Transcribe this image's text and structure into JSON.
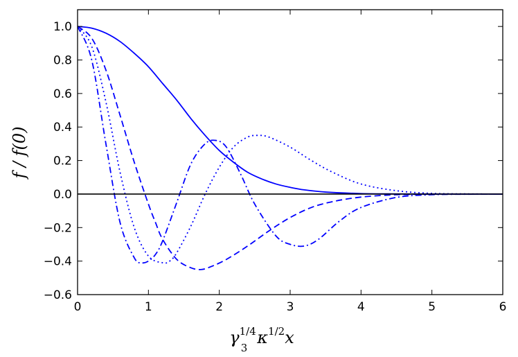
{
  "chart_data": {
    "type": "line",
    "title": "",
    "xlabel": {
      "base": "γ",
      "sub": "3",
      "sup1": "1/4",
      "mid": "κ",
      "sup2": "1/2",
      "tail": "x"
    },
    "ylabel": "f / f(0)",
    "xlim": [
      0,
      6
    ],
    "ylim": [
      -0.6,
      1.1
    ],
    "x_ticks": [
      0,
      1,
      2,
      3,
      4,
      5,
      6
    ],
    "x_tick_labels": [
      "0",
      "1",
      "2",
      "3",
      "4",
      "5",
      "6"
    ],
    "y_ticks": [
      -0.6,
      -0.4,
      -0.2,
      0.0,
      0.2,
      0.4,
      0.6,
      0.8,
      1.0
    ],
    "y_tick_labels": [
      "−0.6",
      "−0.4",
      "−0.2",
      "0.0",
      "0.2",
      "0.4",
      "0.6",
      "0.8",
      "1.0"
    ],
    "grid": false,
    "legend": "none",
    "reference_line": {
      "y": 0,
      "color": "#000000"
    },
    "series": [
      {
        "style": "solid",
        "color": "#0000ff",
        "x": [
          0,
          0.2,
          0.4,
          0.6,
          0.8,
          1.0,
          1.2,
          1.4,
          1.6,
          1.8,
          2.0,
          2.2,
          2.4,
          2.6,
          2.8,
          3.0,
          3.2,
          3.5,
          4.0,
          4.5,
          5.0,
          5.5,
          6.0
        ],
        "y": [
          1.0,
          0.99,
          0.96,
          0.91,
          0.84,
          0.76,
          0.66,
          0.56,
          0.45,
          0.35,
          0.26,
          0.19,
          0.13,
          0.09,
          0.06,
          0.04,
          0.025,
          0.012,
          0.003,
          0.0007,
          0.0001,
          0.0,
          0.0
        ]
      },
      {
        "style": "dashed",
        "color": "#0000ff",
        "x": [
          0,
          0.2,
          0.4,
          0.6,
          0.8,
          1.0,
          1.1,
          1.2,
          1.4,
          1.6,
          1.75,
          1.9,
          2.1,
          2.4,
          2.7,
          3.0,
          3.3,
          3.6,
          4.0,
          4.5,
          5.0,
          5.5,
          6.0
        ],
        "y": [
          1.0,
          0.93,
          0.74,
          0.47,
          0.19,
          -0.06,
          -0.17,
          -0.27,
          -0.39,
          -0.44,
          -0.45,
          -0.43,
          -0.39,
          -0.31,
          -0.22,
          -0.14,
          -0.08,
          -0.045,
          -0.018,
          -0.004,
          -0.001,
          0.0,
          0.0
        ]
      },
      {
        "style": "dotted",
        "color": "#0000ff",
        "x": [
          0,
          0.2,
          0.4,
          0.6,
          0.8,
          1.0,
          1.2,
          1.3,
          1.4,
          1.6,
          1.8,
          2.0,
          2.2,
          2.4,
          2.55,
          2.7,
          3.0,
          3.3,
          3.6,
          4.0,
          4.5,
          5.0,
          5.5,
          6.0
        ],
        "y": [
          1.0,
          0.88,
          0.55,
          0.13,
          -0.2,
          -0.37,
          -0.41,
          -0.4,
          -0.35,
          -0.19,
          0.0,
          0.16,
          0.28,
          0.34,
          0.35,
          0.34,
          0.28,
          0.2,
          0.13,
          0.06,
          0.02,
          0.004,
          0.001,
          0.0
        ]
      },
      {
        "style": "dashdot",
        "color": "#0000ff",
        "x": [
          0,
          0.2,
          0.4,
          0.6,
          0.8,
          0.9,
          1.0,
          1.1,
          1.2,
          1.4,
          1.6,
          1.8,
          1.95,
          2.1,
          2.3,
          2.5,
          2.8,
          3.0,
          3.2,
          3.4,
          3.7,
          4.0,
          4.5,
          5.0,
          5.5,
          6.0
        ],
        "y": [
          1.0,
          0.8,
          0.3,
          -0.17,
          -0.38,
          -0.41,
          -0.4,
          -0.36,
          -0.28,
          -0.05,
          0.18,
          0.3,
          0.32,
          0.28,
          0.12,
          -0.06,
          -0.25,
          -0.3,
          -0.31,
          -0.27,
          -0.16,
          -0.08,
          -0.02,
          -0.004,
          -0.001,
          0.0
        ]
      }
    ]
  }
}
